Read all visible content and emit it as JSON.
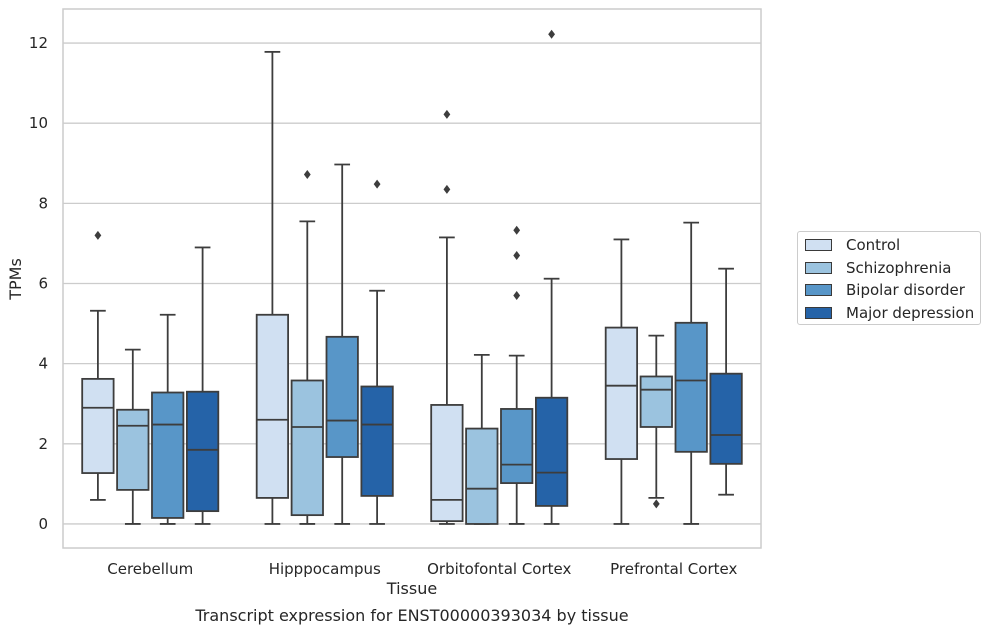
{
  "chart_data": {
    "type": "box",
    "xlabel": "Tissue",
    "ylabel": "TPMs",
    "caption": "Transcript expression for ENST00000393034 by tissue",
    "categories": [
      "Cerebellum",
      "Hipppocampus",
      "Orbitofontal Cortex",
      "Prefrontal Cortex"
    ],
    "ylim": [
      -0.6,
      12.85
    ],
    "yticks": [
      0,
      2,
      4,
      6,
      8,
      10,
      12
    ],
    "grid": "horizontal",
    "legend_position": "right",
    "series": [
      {
        "name": "Control",
        "color": "#d0e0f2",
        "boxes": [
          {
            "whislo": 0.6,
            "q1": 1.27,
            "med": 2.9,
            "q3": 3.62,
            "whishi": 5.32,
            "fliers": [
              7.2
            ]
          },
          {
            "whislo": 0.0,
            "q1": 0.65,
            "med": 2.6,
            "q3": 5.22,
            "whishi": 11.78,
            "fliers": []
          },
          {
            "whislo": 0.0,
            "q1": 0.07,
            "med": 0.6,
            "q3": 2.97,
            "whishi": 7.15,
            "fliers": [
              10.22,
              8.35
            ]
          },
          {
            "whislo": 0.0,
            "q1": 1.62,
            "med": 3.45,
            "q3": 4.9,
            "whishi": 7.1,
            "fliers": []
          }
        ]
      },
      {
        "name": "Schizophrenia",
        "color": "#9bc3df",
        "boxes": [
          {
            "whislo": 0.0,
            "q1": 0.85,
            "med": 2.45,
            "q3": 2.85,
            "whishi": 4.35,
            "fliers": []
          },
          {
            "whislo": 0.0,
            "q1": 0.22,
            "med": 2.42,
            "q3": 3.58,
            "whishi": 7.55,
            "fliers": [
              8.72
            ]
          },
          {
            "whislo": 0.0,
            "q1": 0.0,
            "med": 0.88,
            "q3": 2.38,
            "whishi": 4.22,
            "fliers": []
          },
          {
            "whislo": 0.65,
            "q1": 2.42,
            "med": 3.35,
            "q3": 3.68,
            "whishi": 4.7,
            "fliers": [
              0.5
            ]
          }
        ]
      },
      {
        "name": "Bipolar disorder",
        "color": "#5896c8",
        "boxes": [
          {
            "whislo": 0.0,
            "q1": 0.15,
            "med": 2.48,
            "q3": 3.28,
            "whishi": 5.22,
            "fliers": []
          },
          {
            "whislo": 0.0,
            "q1": 1.67,
            "med": 2.58,
            "q3": 4.67,
            "whishi": 8.97,
            "fliers": []
          },
          {
            "whislo": 0.0,
            "q1": 1.02,
            "med": 1.48,
            "q3": 2.87,
            "whishi": 4.2,
            "fliers": [
              7.33,
              6.7,
              5.7
            ]
          },
          {
            "whislo": 0.0,
            "q1": 1.8,
            "med": 3.58,
            "q3": 5.02,
            "whishi": 7.52,
            "fliers": []
          }
        ]
      },
      {
        "name": "Major depression",
        "color": "#2563a8",
        "boxes": [
          {
            "whislo": 0.0,
            "q1": 0.32,
            "med": 1.85,
            "q3": 3.3,
            "whishi": 6.9,
            "fliers": []
          },
          {
            "whislo": 0.0,
            "q1": 0.7,
            "med": 2.48,
            "q3": 3.43,
            "whishi": 5.82,
            "fliers": [
              8.48
            ]
          },
          {
            "whislo": 0.0,
            "q1": 0.45,
            "med": 1.28,
            "q3": 3.15,
            "whishi": 6.12,
            "fliers": [
              12.22
            ]
          },
          {
            "whislo": 0.73,
            "q1": 1.5,
            "med": 2.22,
            "q3": 3.75,
            "whishi": 6.37,
            "fliers": []
          }
        ]
      }
    ]
  }
}
